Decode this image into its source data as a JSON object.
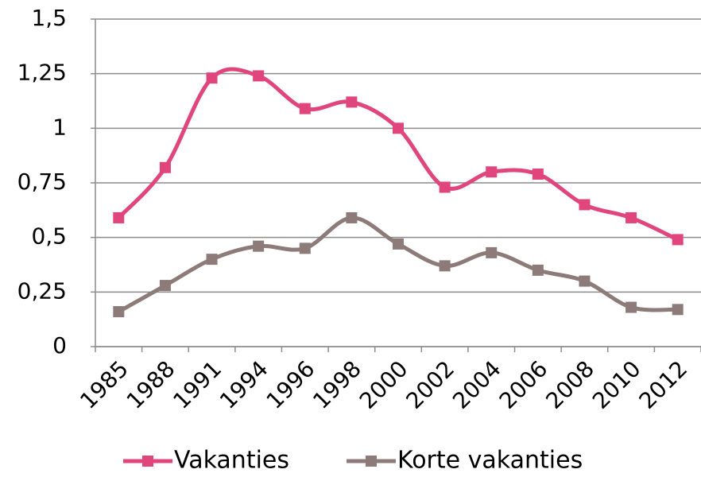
{
  "chart_data": {
    "type": "line",
    "categories": [
      "1985",
      "1988",
      "1991",
      "1994",
      "1996",
      "1998",
      "2000",
      "2002",
      "2004",
      "2006",
      "2008",
      "2010",
      "2012"
    ],
    "series": [
      {
        "name": "Vakanties",
        "color": "#e0457b",
        "values": [
          0.59,
          0.82,
          1.23,
          1.24,
          1.09,
          1.12,
          1.0,
          0.73,
          0.8,
          0.79,
          0.65,
          0.59,
          0.49
        ]
      },
      {
        "name": "Korte vakanties",
        "color": "#8c7b78",
        "values": [
          0.16,
          0.28,
          0.4,
          0.46,
          0.45,
          0.59,
          0.47,
          0.37,
          0.43,
          0.35,
          0.3,
          0.18,
          0.17
        ]
      }
    ],
    "ylim": [
      0,
      1.5
    ],
    "yticks": [
      0,
      {
        "value": 0.25,
        "label": "0,25"
      },
      {
        "value": 0.5,
        "label": "0,5"
      },
      {
        "value": 0.75,
        "label": "0,75"
      },
      1,
      {
        "value": 1.25,
        "label": "1,25"
      },
      {
        "value": 1.5,
        "label": "1,5"
      }
    ],
    "grid": true,
    "smooth": true,
    "legend": "bottom"
  }
}
